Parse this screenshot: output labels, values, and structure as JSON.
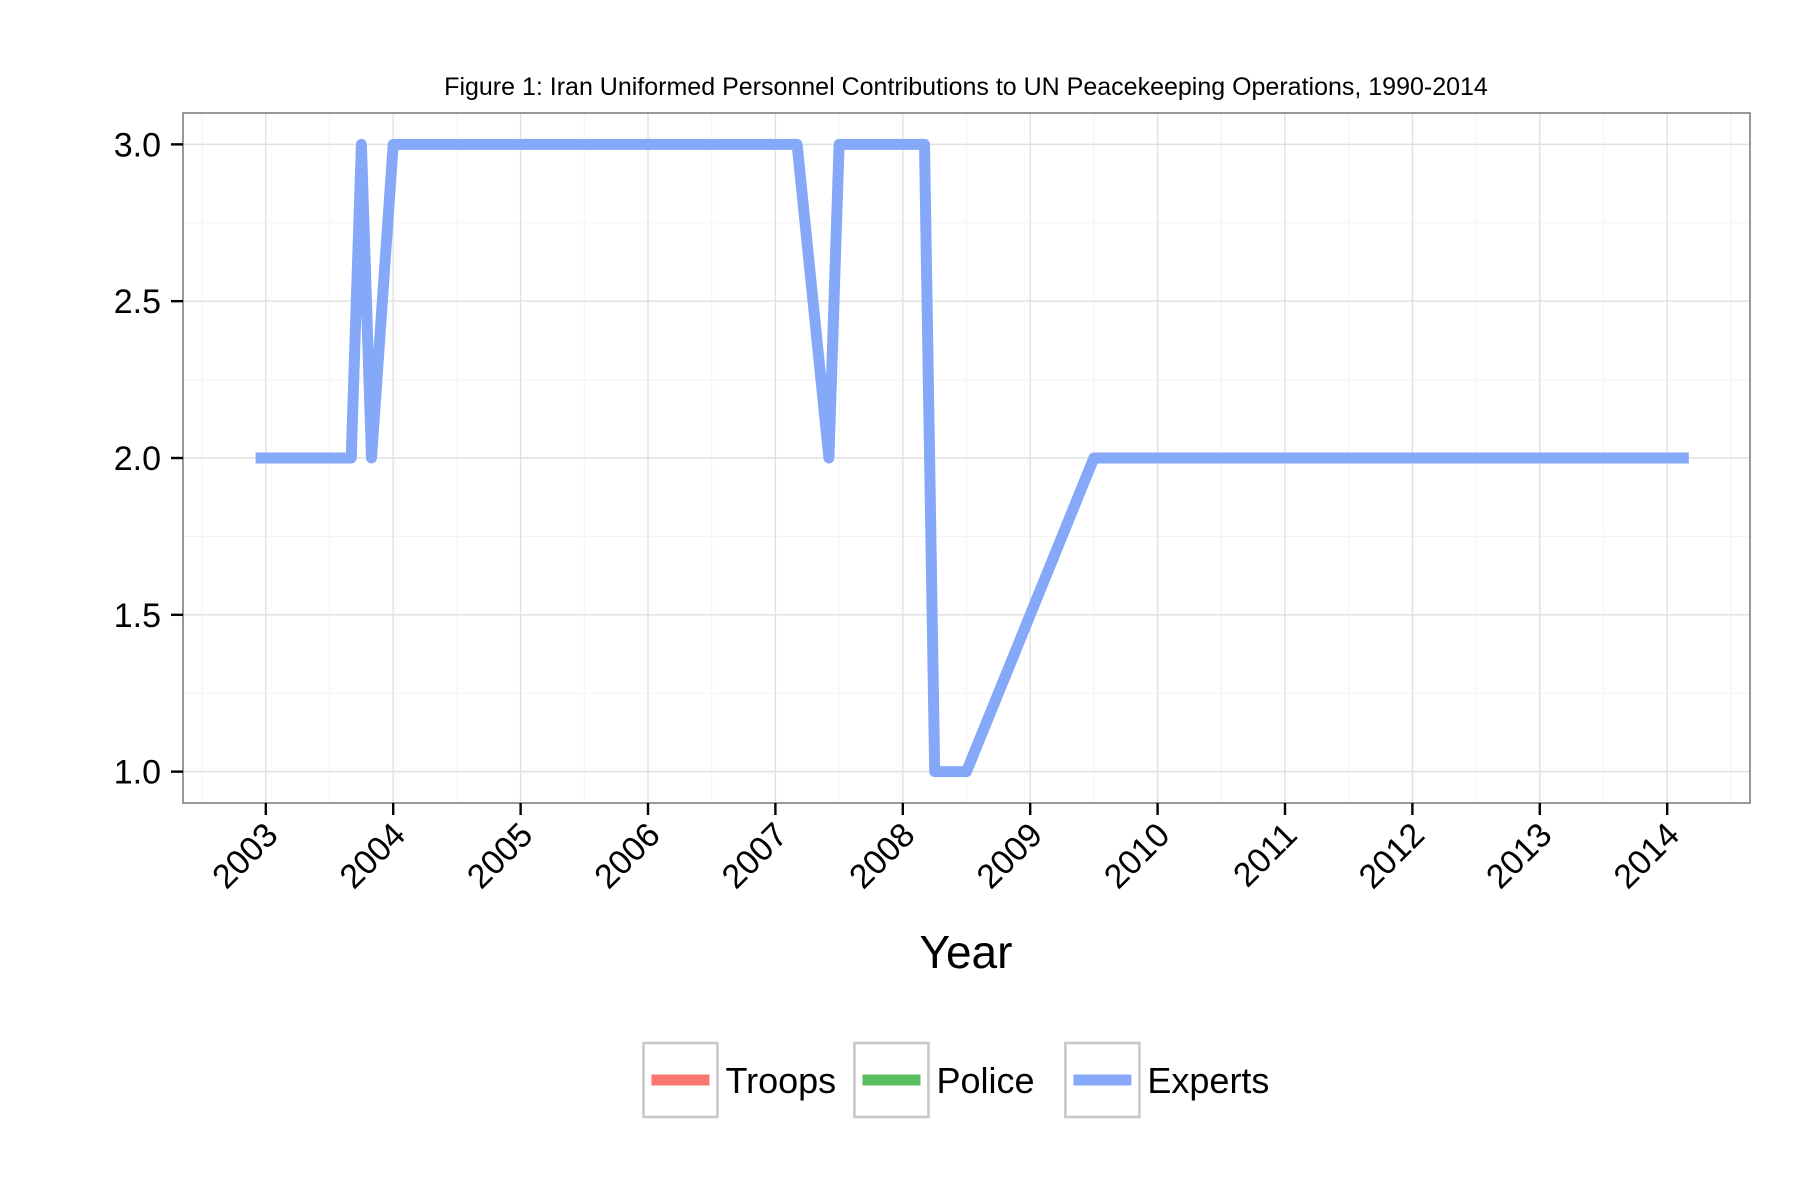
{
  "chart_data": {
    "type": "line",
    "title": "Figure 1: Iran Uniformed Personnel Contributions to UN Peacekeeping Operations, 1990-2014",
    "xlabel": "Year",
    "ylabel": "",
    "xlim": [
      2002.35,
      2014.65
    ],
    "ylim": [
      0.9,
      3.1
    ],
    "x_ticks": [
      2003,
      2004,
      2005,
      2006,
      2007,
      2008,
      2009,
      2010,
      2011,
      2012,
      2013,
      2014
    ],
    "y_ticks": [
      1.0,
      1.5,
      2.0,
      2.5,
      3.0
    ],
    "y_tick_labels": [
      "1.0",
      "1.5",
      "2.0",
      "2.5",
      "3.0"
    ],
    "grid": true,
    "legend_position": "bottom",
    "series": [
      {
        "name": "Troops",
        "color": "#f8766d",
        "x": [],
        "y": []
      },
      {
        "name": "Police",
        "color": "#5bbf5f",
        "x": [],
        "y": []
      },
      {
        "name": "Experts",
        "color": "#86a8f8",
        "x": [
          2002.92,
          2003.67,
          2003.75,
          2003.83,
          2004.0,
          2007.17,
          2007.42,
          2007.5,
          2008.17,
          2008.25,
          2008.5,
          2009.5,
          2014.17
        ],
        "y": [
          2,
          2,
          3,
          2,
          3,
          3,
          2,
          3,
          3,
          1,
          1,
          2,
          2
        ]
      }
    ]
  }
}
